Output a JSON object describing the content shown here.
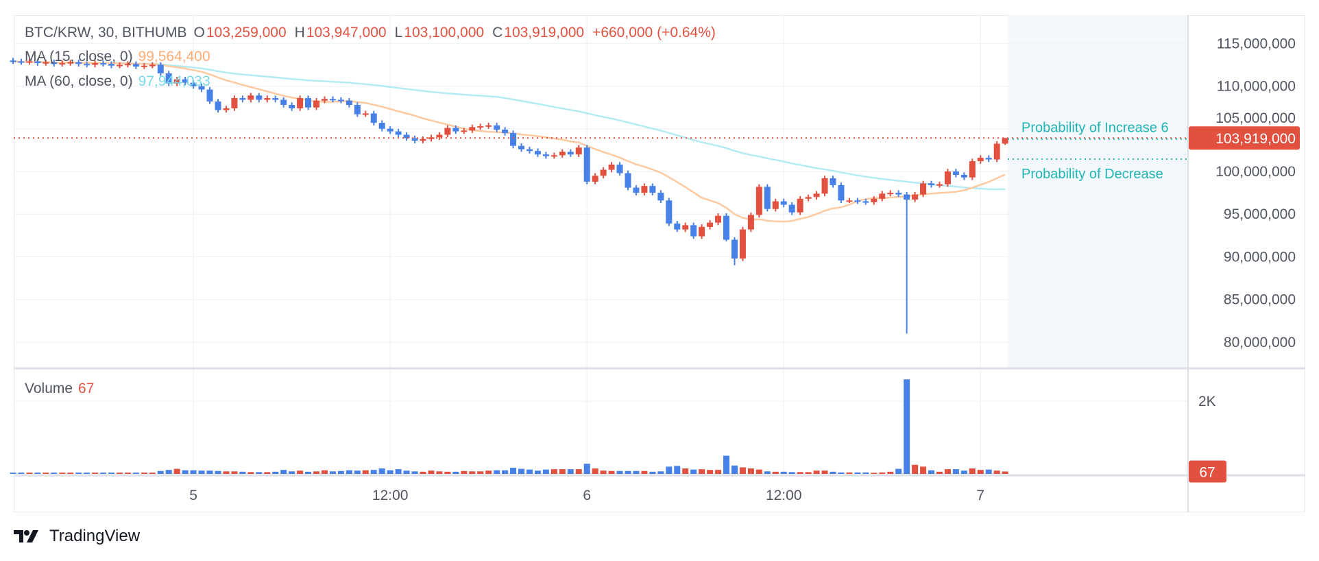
{
  "header": {
    "symbol": "BTC/KRW, 30, BITHUMB",
    "o_label": "O",
    "o_value": "103,259,000",
    "h_label": "H",
    "h_value": "103,947,000",
    "l_label": "L",
    "l_value": "103,100,000",
    "c_label": "C",
    "c_value": "103,919,000",
    "change": "+660,000 (+0.64%)"
  },
  "indicators": {
    "ma15": {
      "label": "MA (15, close, 0)",
      "value": "99,564,400",
      "color": "#ffab73",
      "line_color": "#ffc9a0"
    },
    "ma60": {
      "label": "MA (60, close, 0)",
      "value": "97,944,033",
      "color": "#7ad9e6",
      "line_color": "#b4ebf2"
    },
    "volume": {
      "label": "Volume",
      "value": "67"
    }
  },
  "price_axis": {
    "ticks": [
      "115,000,000",
      "110,000,000",
      "105,000,000",
      "100,000,000",
      "95,000,000",
      "90,000,000",
      "85,000,000",
      "80,000,000"
    ],
    "current_price_label": "103,919,000"
  },
  "volume_axis": {
    "ticks": [
      "2K"
    ],
    "current_volume_label": "67"
  },
  "time_axis": {
    "ticks": [
      "5",
      "12:00",
      "6",
      "12:00",
      "7"
    ]
  },
  "annotations": {
    "increase_label": "Probability of Increase 6",
    "decrease_label": "Probability of Decrease",
    "increase_price": 103.8,
    "decrease_price": 101.45
  },
  "colors": {
    "up": "#e2513f",
    "down": "#4781e8",
    "forecast_zone": "#f3f8fc",
    "probability": "#1fb5b5"
  },
  "branding": {
    "logo_text": "TradingView"
  },
  "chart_data": {
    "type": "candlestick",
    "units": "million KRW",
    "ylim": [
      78,
      117
    ],
    "volume_ylim": [
      0,
      2800
    ],
    "time_tick_candle_index": [
      22,
      46,
      70,
      94,
      118
    ],
    "time_ticks": [
      "5",
      "12:00",
      "6",
      "12:00",
      "7"
    ],
    "close": [
      112.9,
      112.8,
      112.9,
      112.7,
      112.8,
      112.6,
      112.7,
      112.8,
      112.6,
      112.5,
      112.7,
      112.6,
      112.4,
      112.5,
      112.6,
      112.3,
      112.4,
      112.5,
      111.5,
      110.3,
      110.8,
      110.4,
      110.0,
      109.6,
      108.2,
      107.2,
      107.4,
      108.6,
      108.4,
      108.9,
      108.4,
      108.6,
      108.4,
      107.8,
      107.4,
      108.6,
      107.5,
      108.3,
      108.5,
      108.4,
      108.3,
      107.8,
      106.7,
      106.8,
      105.7,
      105.0,
      104.7,
      104.3,
      103.9,
      103.6,
      103.8,
      104.0,
      104.3,
      105.1,
      104.7,
      104.8,
      105.2,
      105.3,
      105.4,
      104.9,
      104.5,
      103.0,
      102.6,
      102.4,
      102.0,
      101.8,
      101.9,
      102.3,
      102.0,
      102.8,
      98.8,
      99.5,
      100.2,
      100.8,
      99.8,
      98.1,
      97.5,
      98.3,
      97.5,
      96.6,
      93.9,
      93.2,
      93.7,
      92.4,
      93.5,
      94.0,
      94.8,
      92.0,
      89.8,
      93.2,
      94.9,
      98.2,
      95.6,
      96.5,
      96.1,
      95.2,
      96.8,
      97.0,
      97.4,
      99.2,
      98.4,
      96.6,
      96.6,
      96.5,
      96.4,
      96.8,
      97.4,
      97.5,
      97.3,
      96.7,
      97.3,
      98.6,
      98.4,
      98.5,
      100.0,
      99.6,
      99.3,
      101.2,
      101.6,
      101.4,
      103.259,
      103.919
    ],
    "first_open": 113.0,
    "wick_extension": 0.3,
    "special_wicks": [
      {
        "index": 109,
        "low": 81.0
      },
      {
        "index": 88,
        "low": 89.0
      },
      {
        "index": 87,
        "low": 91.8
      },
      {
        "index": 121,
        "high": 103.947,
        "low": 103.1
      }
    ],
    "volume": [
      35,
      35,
      35,
      35,
      35,
      35,
      35,
      35,
      35,
      35,
      35,
      35,
      35,
      35,
      35,
      35,
      35,
      35,
      80,
      110,
      140,
      100,
      100,
      90,
      90,
      80,
      70,
      70,
      60,
      50,
      50,
      50,
      60,
      110,
      70,
      90,
      60,
      70,
      100,
      70,
      80,
      100,
      90,
      100,
      110,
      150,
      100,
      130,
      90,
      70,
      60,
      90,
      70,
      60,
      60,
      80,
      70,
      70,
      90,
      100,
      100,
      170,
      140,
      120,
      90,
      120,
      130,
      130,
      130,
      130,
      280,
      150,
      90,
      80,
      80,
      80,
      80,
      80,
      60,
      70,
      200,
      220,
      150,
      120,
      130,
      110,
      110,
      500,
      230,
      180,
      150,
      120,
      70,
      60,
      60,
      50,
      50,
      50,
      90,
      90,
      60,
      40,
      40,
      40,
      40,
      30,
      40,
      60,
      140,
      2600,
      250,
      200,
      100,
      60,
      130,
      130,
      90,
      150,
      110,
      120,
      90,
      67
    ],
    "current_price": 103.919
  }
}
